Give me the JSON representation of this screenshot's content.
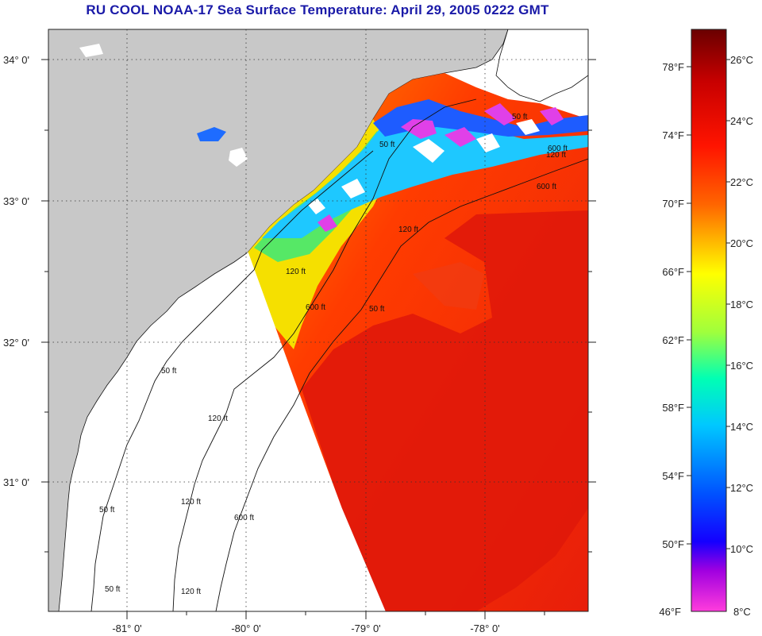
{
  "title": "RU COOL  NOAA-17  Sea Surface Temperature:  April 29, 2005 0222 GMT",
  "lat_labels": [
    "34° 0'",
    "33° 0'",
    "32° 0'",
    "31° 0'"
  ],
  "lon_labels": [
    "-81° 0'",
    "-80° 0'",
    "-79° 0'",
    "-78° 0'"
  ],
  "contour_labels": [
    "50 ft",
    "120 ft",
    "600 ft",
    "50 ft",
    "120 ft",
    "600 ft",
    "50 ft",
    "120 ft",
    "600 ft",
    "50 ft",
    "120 ft",
    "600 ft",
    "50 ft",
    "120 ft",
    "50 ft",
    "120 ft"
  ],
  "colorbar": {
    "fahrenheit": [
      "78°F",
      "74°F",
      "70°F",
      "66°F",
      "62°F",
      "58°F",
      "54°F",
      "50°F",
      "46°F"
    ],
    "celsius": [
      "26°C",
      "24°C",
      "22°C",
      "20°C",
      "18°C",
      "16°C",
      "14°C",
      "12°C",
      "10°C",
      "8°C"
    ],
    "colors": [
      "#6a0000",
      "#c80000",
      "#ff1400",
      "#ff6400",
      "#ffb400",
      "#ffff00",
      "#a0ff3c",
      "#00ffb4",
      "#00c8ff",
      "#0050ff",
      "#1400ff",
      "#a000e0",
      "#ff3cdc"
    ]
  },
  "map_colors": {
    "land": "#c8c8c8",
    "water_no_data": "#ffffff",
    "gulf_stream": "#dd1a0e"
  }
}
